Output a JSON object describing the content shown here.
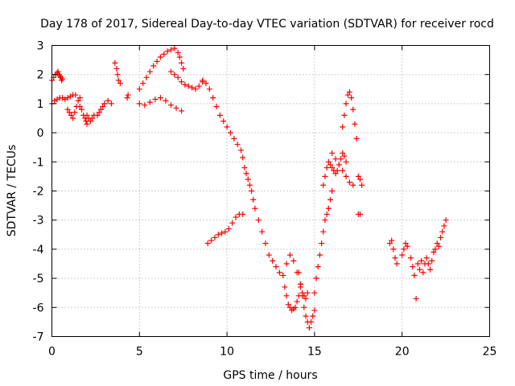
{
  "chart_data": {
    "type": "scatter",
    "title": "Day 178 of 2017, Sidereal Day-to-day VTEC variation (SDTVAR) for receiver rocd",
    "xlabel": "GPS time / hours",
    "ylabel": "SDTVAR / TECUs",
    "xlim": [
      0,
      25
    ],
    "ylim": [
      -7,
      3
    ],
    "xticks": [
      0,
      5,
      10,
      15,
      20,
      25
    ],
    "yticks": [
      3,
      2,
      1,
      0,
      -1,
      -2,
      -3,
      -4,
      -5,
      -6,
      -7
    ],
    "grid": true,
    "marker": "plus",
    "color": "#ff0000",
    "series": [
      {
        "name": "SDTVAR",
        "x": [
          0.0,
          0.1,
          0.2,
          0.3,
          0.35,
          0.4,
          0.45,
          0.5,
          0.55,
          0.6,
          0.0,
          0.15,
          0.3,
          0.45,
          0.6,
          0.75,
          0.9,
          1.05,
          1.2,
          1.35,
          0.9,
          1.0,
          1.1,
          1.2,
          1.3,
          1.4,
          1.5,
          1.6,
          1.6,
          1.7,
          1.8,
          1.9,
          1.95,
          2.0,
          2.0,
          2.1,
          2.2,
          2.3,
          2.4,
          2.6,
          2.7,
          2.8,
          2.9,
          3.0,
          3.2,
          3.4,
          3.6,
          3.7,
          3.75,
          3.8,
          3.9,
          4.3,
          4.35,
          5.0,
          5.2,
          5.4,
          5.6,
          5.8,
          6.0,
          6.2,
          6.4,
          6.6,
          6.8,
          7.0,
          7.2,
          7.3,
          7.4,
          7.5,
          6.8,
          7.0,
          7.2,
          7.4,
          7.6,
          7.8,
          8.0,
          8.2,
          8.4,
          8.6,
          5.0,
          5.3,
          5.6,
          5.9,
          6.2,
          6.5,
          6.8,
          7.1,
          7.4,
          8.6,
          8.8,
          9.0,
          9.2,
          9.4,
          9.6,
          9.8,
          10.0,
          10.2,
          10.4,
          10.6,
          10.8,
          10.9,
          11.0,
          11.1,
          11.2,
          11.3,
          11.4,
          11.5,
          11.6,
          11.8,
          12.0,
          12.2,
          12.4,
          12.6,
          12.8,
          13.0,
          13.2,
          8.9,
          9.1,
          9.3,
          9.5,
          9.7,
          9.9,
          10.1,
          10.3,
          10.5,
          10.7,
          10.9,
          13.3,
          13.4,
          13.5,
          13.6,
          13.7,
          13.8,
          13.9,
          14.0,
          14.1,
          14.2,
          13.4,
          13.6,
          13.8,
          14.0,
          14.2,
          14.3,
          14.4,
          14.5,
          14.6,
          14.1,
          14.2,
          14.3,
          14.4,
          14.5,
          14.6,
          14.7,
          14.8,
          14.9,
          15.0,
          15.0,
          15.1,
          15.2,
          15.3,
          15.4,
          15.5,
          15.6,
          15.7,
          15.8,
          15.9,
          16.0,
          15.5,
          15.6,
          15.7,
          15.8,
          15.9,
          16.0,
          16.1,
          16.2,
          16.3,
          16.4,
          16.5,
          16.6,
          16.7,
          16.8,
          16.6,
          16.7,
          16.8,
          16.9,
          17.0,
          17.1,
          17.2,
          17.3,
          17.4,
          16.0,
          16.2,
          16.4,
          16.6,
          16.8,
          17.0,
          17.2,
          17.5,
          17.6,
          17.7,
          17.5,
          17.6,
          19.3,
          19.4,
          19.5,
          19.6,
          19.7,
          20.0,
          20.1,
          20.2,
          20.3,
          20.5,
          20.6,
          20.7,
          20.8,
          20.9,
          21.0,
          21.1,
          21.2,
          21.3,
          21.4,
          21.5,
          21.6,
          21.7,
          21.8,
          21.9,
          22.0,
          22.1,
          22.2,
          22.3,
          22.4,
          22.5
        ],
        "y": [
          1.8,
          1.9,
          2.0,
          2.05,
          2.1,
          2.0,
          1.95,
          1.9,
          1.8,
          1.85,
          1.0,
          1.1,
          1.15,
          1.2,
          1.2,
          1.15,
          1.2,
          1.25,
          1.3,
          1.3,
          0.8,
          0.7,
          0.6,
          0.5,
          0.7,
          0.9,
          1.1,
          1.2,
          0.9,
          0.8,
          0.6,
          0.5,
          0.4,
          0.3,
          0.6,
          0.5,
          0.4,
          0.5,
          0.6,
          0.6,
          0.7,
          0.8,
          0.9,
          1.0,
          1.1,
          1.0,
          2.4,
          2.2,
          2.0,
          1.8,
          1.7,
          1.2,
          1.3,
          1.5,
          1.7,
          1.9,
          2.1,
          2.3,
          2.45,
          2.6,
          2.7,
          2.8,
          2.85,
          2.9,
          2.75,
          2.6,
          2.4,
          2.2,
          2.1,
          2.0,
          1.9,
          1.75,
          1.65,
          1.6,
          1.55,
          1.5,
          1.6,
          1.75,
          1.0,
          0.95,
          1.05,
          1.15,
          1.2,
          1.1,
          0.95,
          0.85,
          0.75,
          1.8,
          1.7,
          1.5,
          1.2,
          0.9,
          0.6,
          0.4,
          0.2,
          0.0,
          -0.2,
          -0.4,
          -0.6,
          -0.85,
          -1.2,
          -1.4,
          -1.6,
          -1.8,
          -2.0,
          -2.3,
          -2.6,
          -3.0,
          -3.4,
          -3.8,
          -4.2,
          -4.4,
          -4.6,
          -4.8,
          -4.9,
          -3.8,
          -3.7,
          -3.6,
          -3.5,
          -3.45,
          -3.4,
          -3.3,
          -3.1,
          -2.9,
          -2.8,
          -2.8,
          -5.3,
          -5.6,
          -5.9,
          -6.0,
          -6.1,
          -6.05,
          -6.0,
          -5.8,
          -5.6,
          -5.3,
          -4.5,
          -4.2,
          -4.4,
          -4.8,
          -5.2,
          -5.5,
          -5.6,
          -5.7,
          -5.5,
          -4.8,
          -5.2,
          -5.6,
          -6.0,
          -6.3,
          -6.5,
          -6.7,
          -6.5,
          -6.3,
          -6.1,
          -5.5,
          -5.0,
          -4.6,
          -4.2,
          -3.8,
          -3.4,
          -3.0,
          -2.8,
          -2.6,
          -2.3,
          -2.0,
          -1.8,
          -1.5,
          -1.2,
          -1.0,
          -1.1,
          -1.2,
          -1.3,
          -1.4,
          -1.3,
          -1.1,
          -0.9,
          -0.7,
          -0.8,
          -1.0,
          0.2,
          0.6,
          1.0,
          1.3,
          1.4,
          1.2,
          0.8,
          0.3,
          -0.2,
          -0.7,
          -0.9,
          -1.1,
          -1.3,
          -1.5,
          -1.7,
          -1.8,
          -1.5,
          -1.6,
          -1.8,
          -2.8,
          -2.8,
          -3.8,
          -3.7,
          -4.0,
          -4.3,
          -4.5,
          -4.2,
          -4.0,
          -3.8,
          -3.9,
          -4.3,
          -4.6,
          -4.9,
          -5.7,
          -4.5,
          -4.7,
          -4.4,
          -4.8,
          -4.5,
          -4.3,
          -4.5,
          -4.7,
          -4.4,
          -4.1,
          -4.0,
          -3.8,
          -3.9,
          -3.6,
          -3.4,
          -3.2,
          -3.0
        ]
      }
    ]
  }
}
